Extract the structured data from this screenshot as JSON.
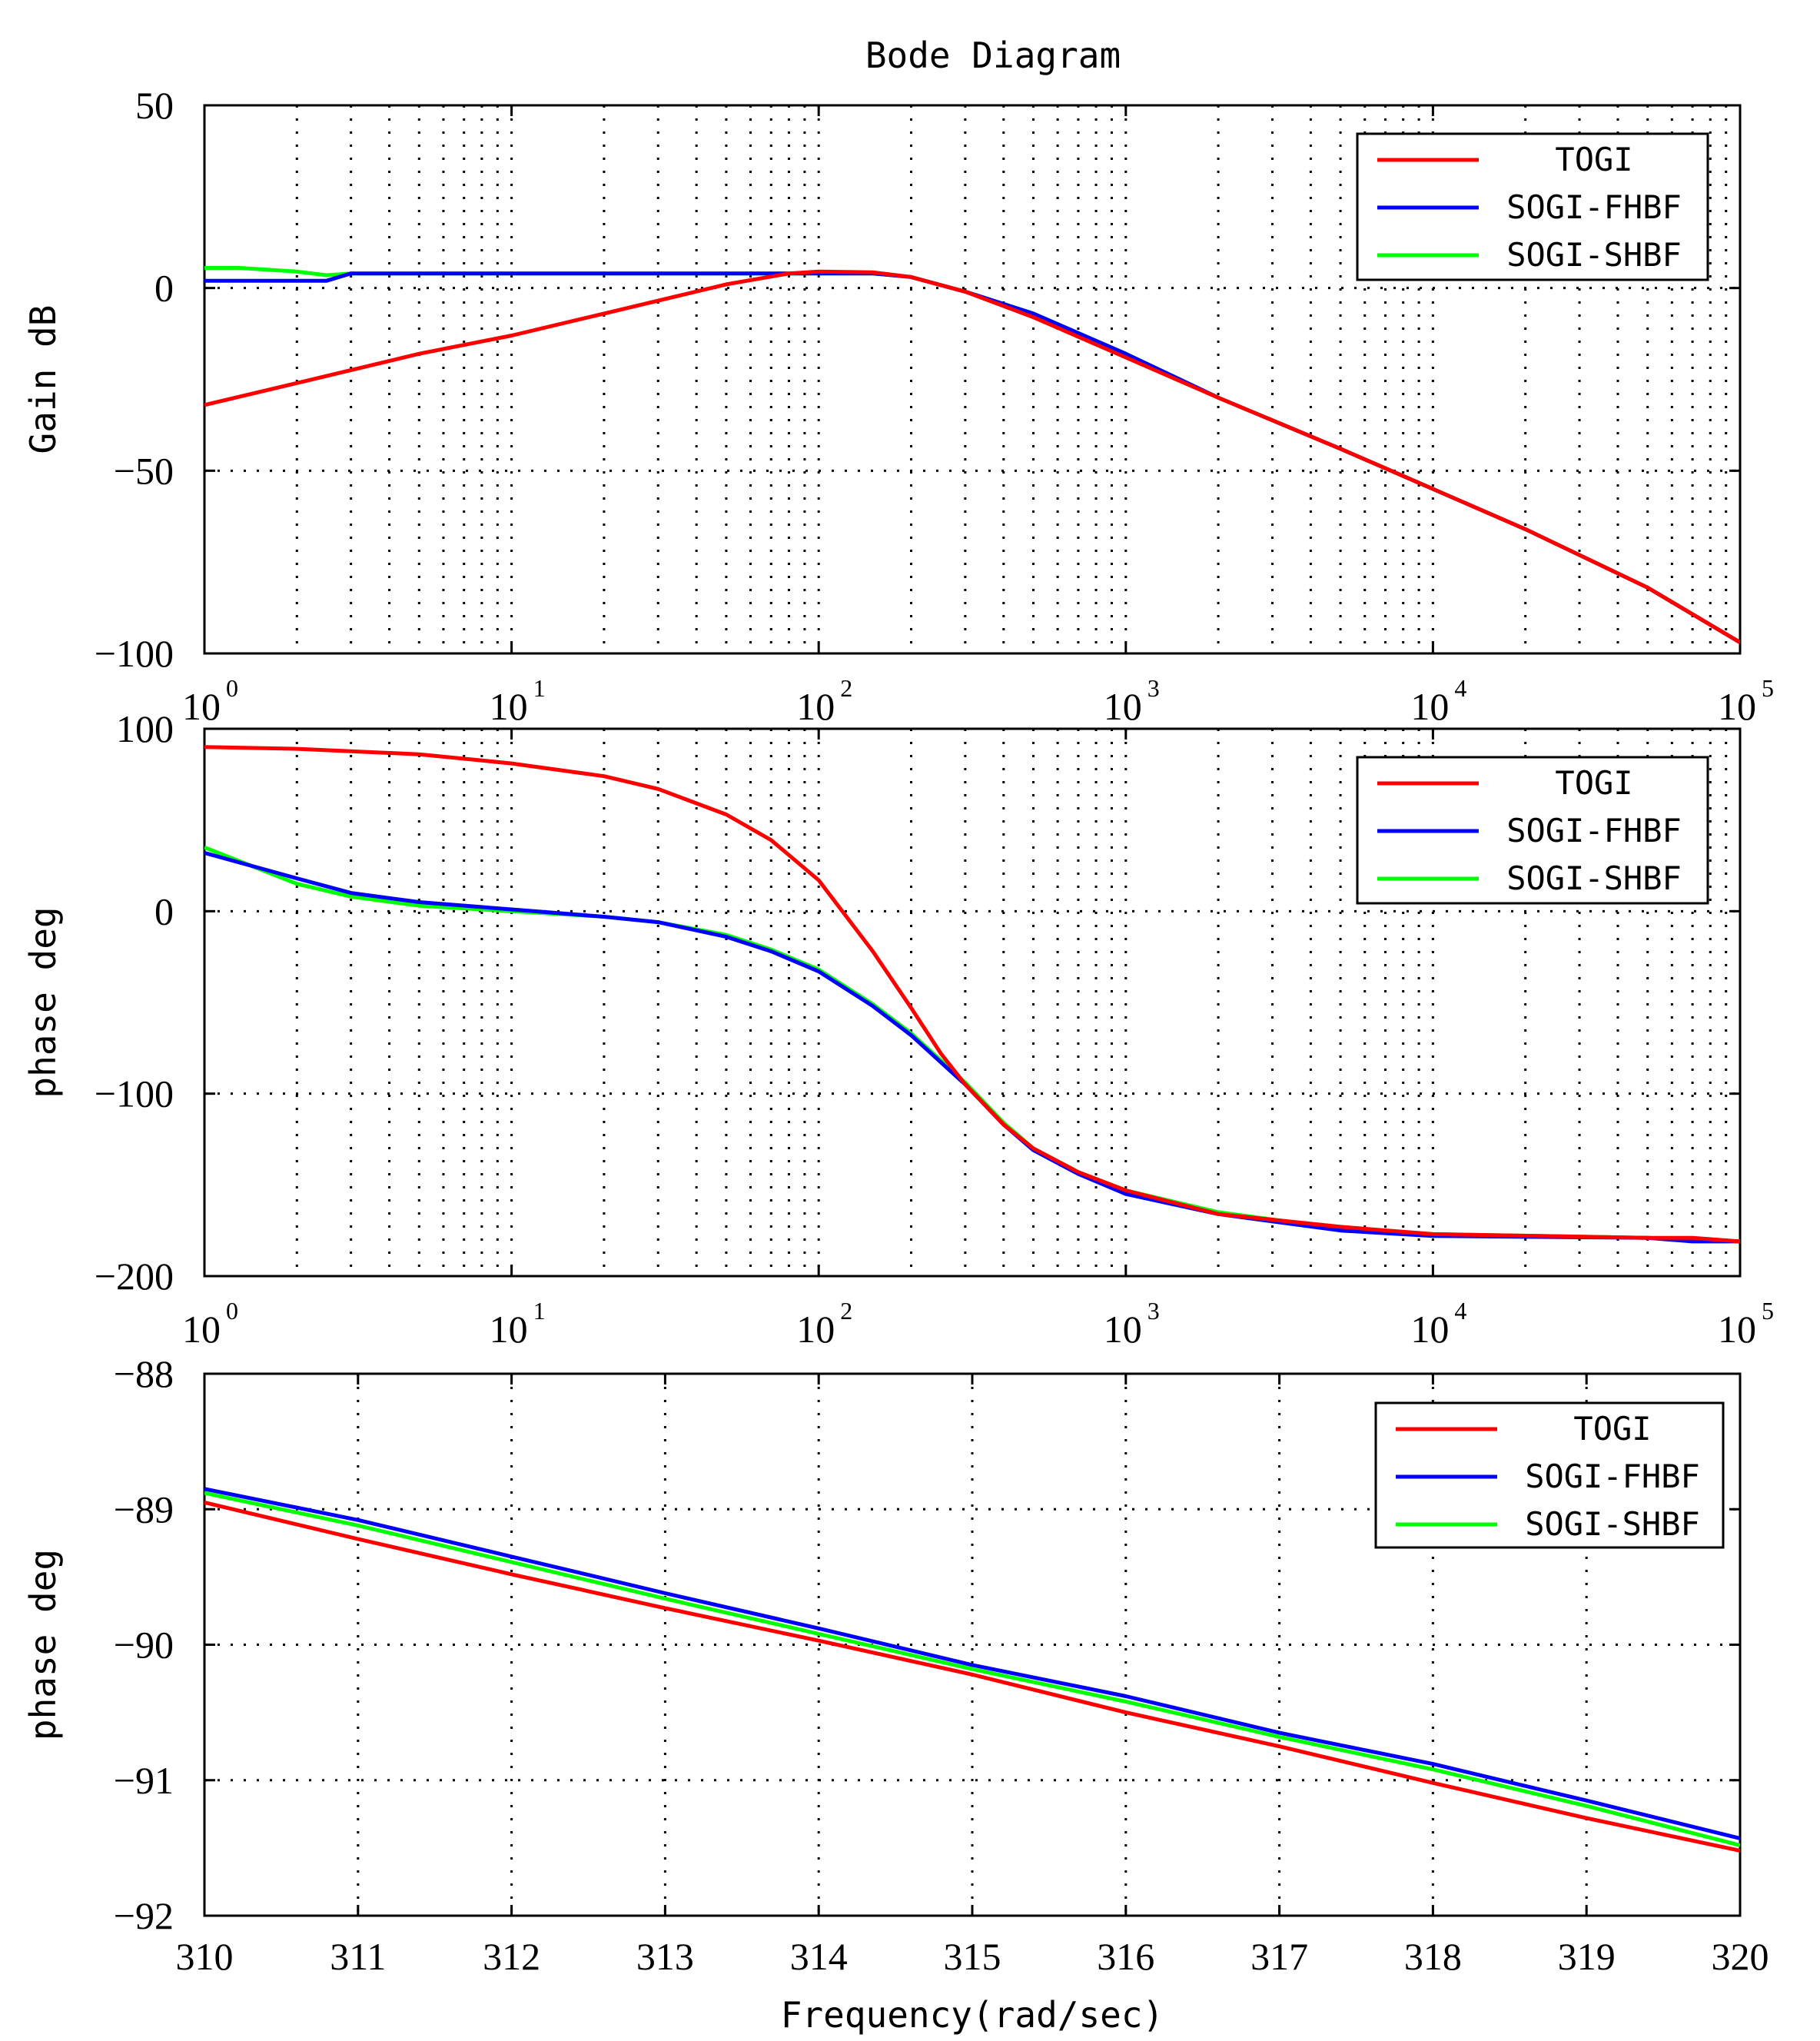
{
  "figure_title": "Bode Diagram",
  "legend_entries": [
    "TOGI",
    "SOGI-FHBF",
    "SOGI-SHBF"
  ],
  "series_colors": {
    "TOGI": "#ff0000",
    "SOGI-FHBF": "#0000ff",
    "SOGI-SHBF": "#00ff00"
  },
  "chart_data": [
    {
      "type": "line",
      "title": "Bode Diagram",
      "xlabel": "",
      "ylabel": "Gain dB",
      "xscale": "log",
      "xlim": [
        1,
        100000
      ],
      "ylim": [
        -100,
        50
      ],
      "x_ticks": [
        1,
        10,
        100,
        1000,
        10000,
        100000
      ],
      "x_tick_labels": [
        {
          "base": "10",
          "exp": "0"
        },
        {
          "base": "10",
          "exp": "1"
        },
        {
          "base": "10",
          "exp": "2"
        },
        {
          "base": "10",
          "exp": "3"
        },
        {
          "base": "10",
          "exp": "4"
        },
        {
          "base": "10",
          "exp": "5"
        }
      ],
      "y_ticks": [
        50,
        0,
        -50,
        -100
      ],
      "y_tick_labels": [
        "50",
        "0",
        "−50",
        "−100"
      ],
      "grid": true,
      "legend": "top-right",
      "series": [
        {
          "name": "TOGI",
          "color": "#ff0000",
          "x": [
            1,
            2,
            5,
            10,
            20,
            50,
            80,
            100,
            150,
            200,
            300,
            500,
            1000,
            2000,
            5000,
            10000,
            20000,
            50000,
            100000
          ],
          "y": [
            -32,
            -26,
            -18,
            -13,
            -7,
            1,
            4,
            4.5,
            4.3,
            3,
            -1,
            -8,
            -19,
            -30,
            -44,
            -55,
            -66,
            -82,
            -97
          ]
        },
        {
          "name": "SOGI-FHBF",
          "color": "#0000ff",
          "x": [
            1,
            2.5,
            3,
            10,
            50,
            100,
            150,
            200,
            300,
            500,
            1000,
            2000,
            5000,
            10000,
            20000,
            50000,
            100000
          ],
          "y": [
            2,
            2,
            4,
            4,
            4,
            4,
            4,
            3,
            -1,
            -7,
            -18,
            -30,
            -44,
            -55,
            -66,
            -82,
            -97
          ]
        },
        {
          "name": "SOGI-SHBF",
          "color": "#00ff00",
          "x": [
            1,
            1.3,
            2,
            2.5,
            3,
            10,
            50,
            100,
            150,
            200,
            300,
            500,
            1000,
            2000,
            5000,
            10000,
            20000,
            50000,
            100000
          ],
          "y": [
            5.5,
            5.5,
            4.5,
            3.5,
            4,
            4,
            4,
            4,
            4,
            3,
            -1,
            -7,
            -18,
            -30,
            -44,
            -55,
            -66,
            -82,
            -97
          ]
        }
      ]
    },
    {
      "type": "line",
      "xlabel": "",
      "ylabel": "phase deg",
      "xscale": "log",
      "xlim": [
        1,
        100000
      ],
      "ylim": [
        -200,
        100
      ],
      "x_ticks": [
        1,
        10,
        100,
        1000,
        10000,
        100000
      ],
      "x_tick_labels": [
        {
          "base": "10",
          "exp": "0"
        },
        {
          "base": "10",
          "exp": "1"
        },
        {
          "base": "10",
          "exp": "2"
        },
        {
          "base": "10",
          "exp": "3"
        },
        {
          "base": "10",
          "exp": "4"
        },
        {
          "base": "10",
          "exp": "5"
        }
      ],
      "y_ticks": [
        100,
        0,
        -100,
        -200
      ],
      "y_tick_labels": [
        "100",
        "0",
        "−100",
        "−200"
      ],
      "grid": true,
      "legend": "top-right",
      "series": [
        {
          "name": "TOGI",
          "color": "#ff0000",
          "x": [
            1,
            2,
            5,
            10,
            20,
            30,
            50,
            70,
            100,
            150,
            200,
            250,
            300,
            400,
            500,
            700,
            1000,
            2000,
            5000,
            10000,
            50000,
            70000,
            100000
          ],
          "y": [
            90,
            89,
            86,
            81,
            74,
            67,
            53,
            39,
            17,
            -22,
            -53,
            -78,
            -95,
            -117,
            -130,
            -143,
            -153,
            -166,
            -173,
            -177,
            -179,
            -179,
            -181
          ]
        },
        {
          "name": "SOGI-FHBF",
          "color": "#0000ff",
          "x": [
            1,
            2,
            3,
            5,
            10,
            20,
            30,
            50,
            70,
            100,
            150,
            200,
            300,
            400,
            500,
            700,
            1000,
            2000,
            5000,
            10000,
            50000,
            70000,
            100000
          ],
          "y": [
            32,
            18,
            10,
            5,
            1,
            -3,
            -6,
            -14,
            -22,
            -33,
            -52,
            -68,
            -95,
            -117,
            -131,
            -144,
            -155,
            -166,
            -175,
            -178,
            -179,
            -181,
            -181
          ]
        },
        {
          "name": "SOGI-SHBF",
          "color": "#00ff00",
          "x": [
            1,
            2,
            3,
            5,
            10,
            20,
            30,
            50,
            70,
            100,
            150,
            200,
            300,
            400,
            500,
            700,
            1000,
            2000,
            5000,
            10000,
            50000,
            70000,
            100000
          ],
          "y": [
            35,
            15,
            8,
            3,
            0,
            -3,
            -6,
            -13,
            -21,
            -32,
            -51,
            -67,
            -94,
            -116,
            -130,
            -143,
            -153,
            -165,
            -174,
            -177,
            -179,
            -180,
            -181
          ]
        }
      ]
    },
    {
      "type": "line",
      "xlabel": "Frequency(rad/sec)",
      "ylabel": "phase deg",
      "xscale": "linear",
      "xlim": [
        310,
        320
      ],
      "ylim": [
        -92,
        -88
      ],
      "x_ticks": [
        310,
        311,
        312,
        313,
        314,
        315,
        316,
        317,
        318,
        319,
        320
      ],
      "x_tick_labels": [
        "310",
        "311",
        "312",
        "313",
        "314",
        "315",
        "316",
        "317",
        "318",
        "319",
        "320"
      ],
      "y_ticks": [
        -88,
        -89,
        -90,
        -91,
        -92
      ],
      "y_tick_labels": [
        "−88",
        "−89",
        "−90",
        "−91",
        "−92"
      ],
      "grid": true,
      "legend": "top-right",
      "series": [
        {
          "name": "TOGI",
          "color": "#ff0000",
          "x": [
            310,
            311,
            312,
            313,
            314,
            315,
            316,
            317,
            318,
            319,
            320
          ],
          "y": [
            -88.95,
            -89.22,
            -89.48,
            -89.73,
            -89.97,
            -90.22,
            -90.5,
            -90.75,
            -91.02,
            -91.28,
            -91.52
          ]
        },
        {
          "name": "SOGI-FHBF",
          "color": "#0000ff",
          "x": [
            310,
            311,
            312,
            313,
            314,
            315,
            316,
            317,
            318,
            319,
            320
          ],
          "y": [
            -88.85,
            -89.08,
            -89.35,
            -89.62,
            -89.88,
            -90.15,
            -90.38,
            -90.65,
            -90.88,
            -91.15,
            -91.43
          ]
        },
        {
          "name": "SOGI-SHBF",
          "color": "#00ff00",
          "x": [
            310,
            311,
            312,
            313,
            314,
            315,
            316,
            317,
            318,
            319,
            320
          ],
          "y": [
            -88.88,
            -89.12,
            -89.39,
            -89.66,
            -89.92,
            -90.18,
            -90.42,
            -90.68,
            -90.92,
            -91.19,
            -91.48
          ]
        }
      ]
    }
  ]
}
